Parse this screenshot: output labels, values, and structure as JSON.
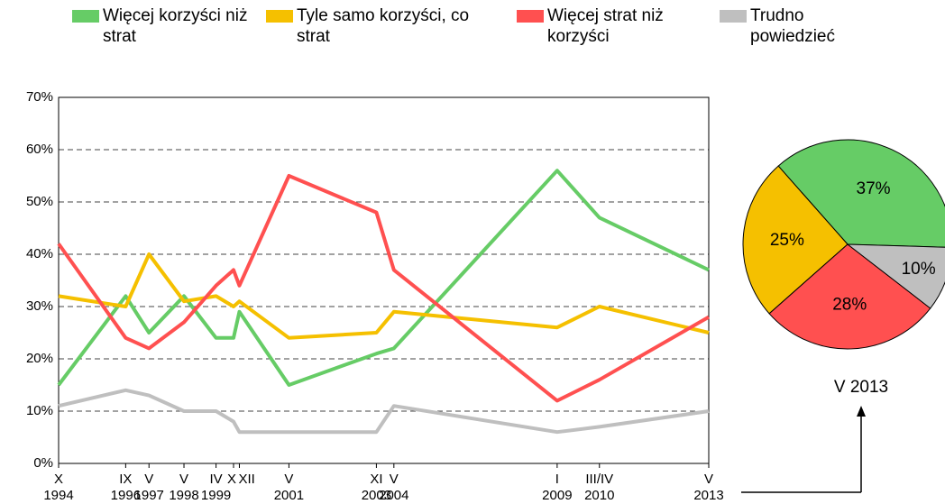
{
  "chart_data": [
    {
      "type": "line",
      "x": [
        "1994-10",
        "1996-09",
        "1997-05",
        "1998-05",
        "1999-04",
        "1999-10",
        "1999-12",
        "2001-05",
        "2003-11",
        "2004-05",
        "2009-01",
        "2010-03/04",
        "2013-05"
      ],
      "x_labels": [
        [
          "X",
          "1994"
        ],
        [
          "IX",
          "1996"
        ],
        [
          "V",
          "1997"
        ],
        [
          "V",
          "1998"
        ],
        [
          "IV",
          "1999"
        ],
        [
          "X"
        ],
        [
          "XII"
        ],
        [
          "V",
          "2001"
        ],
        [
          "XI",
          "2003"
        ],
        [
          "V",
          "2004"
        ],
        [
          "I",
          "2009"
        ],
        [
          "III/IV",
          "2010"
        ],
        [
          "V",
          "2013"
        ]
      ],
      "ylim": [
        0,
        70
      ],
      "yticks": [
        {
          "value": 0,
          "label": "0%"
        },
        {
          "value": 10,
          "label": "10%"
        },
        {
          "value": 20,
          "label": "20%"
        },
        {
          "value": 30,
          "label": "30%"
        },
        {
          "value": 40,
          "label": "40%"
        },
        {
          "value": 50,
          "label": "50%"
        },
        {
          "value": 60,
          "label": "60%"
        },
        {
          "value": 70,
          "label": "70%"
        }
      ],
      "grid": true,
      "series": [
        {
          "name": "Więcej korzyści niż strat",
          "color": "#66cc66",
          "values": [
            15,
            32,
            25,
            32,
            24,
            24,
            29,
            15,
            21,
            22,
            56,
            47,
            37
          ]
        },
        {
          "name": "Tyle samo korzyści, co strat",
          "color": "#f5c000",
          "values": [
            32,
            30,
            40,
            31,
            32,
            30,
            31,
            24,
            25,
            29,
            26,
            30,
            25
          ]
        },
        {
          "name": "Więcej strat niż korzyści",
          "color": "#ff5050",
          "values": [
            42,
            24,
            22,
            27,
            34,
            37,
            34,
            55,
            48,
            37,
            12,
            16,
            28
          ]
        },
        {
          "name": "Trudno powiedzieć",
          "color": "#bfbfbf",
          "values": [
            11,
            14,
            13,
            10,
            10,
            8,
            6,
            6,
            6,
            11,
            6,
            7,
            10
          ]
        }
      ]
    },
    {
      "type": "pie",
      "title": "V 2013",
      "categories": [
        "Więcej korzyści niż strat",
        "Tyle samo korzyści, co strat",
        "Więcej strat niż korzyści",
        "Trudno powiedzieć"
      ],
      "values": [
        37,
        25,
        28,
        10
      ],
      "value_labels": [
        "37%",
        "25%",
        "28%",
        "10%"
      ],
      "colors": [
        "#66cc66",
        "#f5c000",
        "#ff5050",
        "#bfbfbf"
      ]
    }
  ]
}
